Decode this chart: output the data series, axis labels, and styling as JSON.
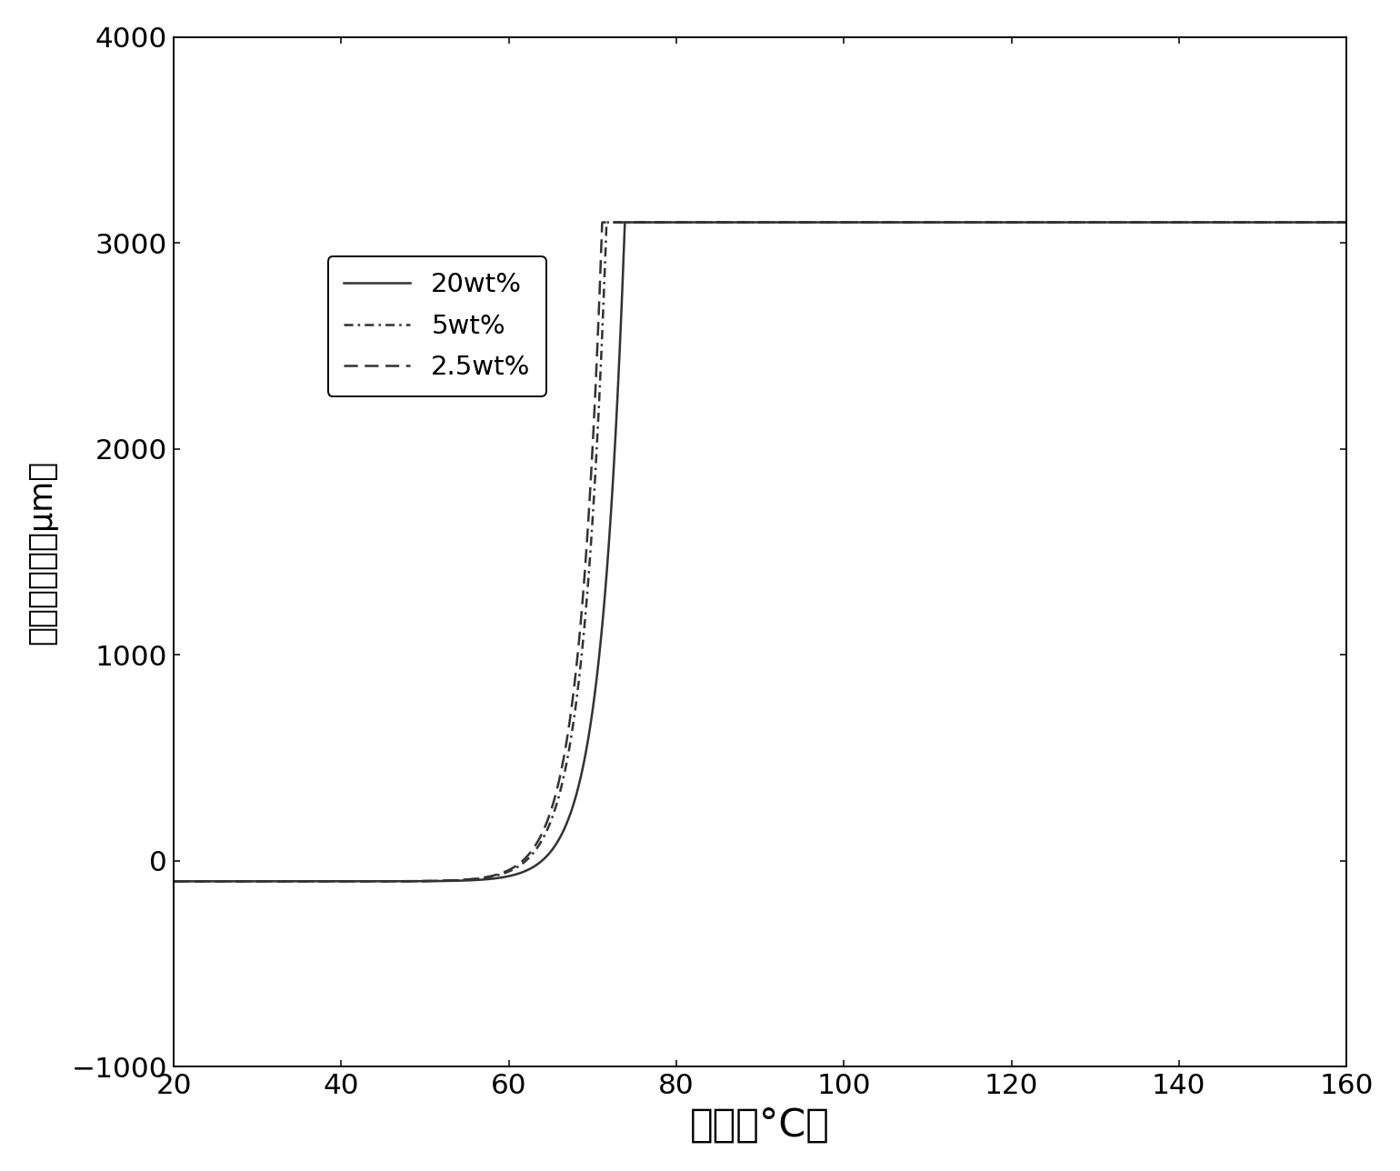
{
  "xlabel": "温度（°C）",
  "ylabel": "尺寸改变量（μm）",
  "xlim": [
    20,
    160
  ],
  "ylim": [
    -1000,
    4000
  ],
  "xticks": [
    20,
    40,
    60,
    80,
    100,
    120,
    140,
    160
  ],
  "yticks": [
    -1000,
    0,
    1000,
    2000,
    3000,
    4000
  ],
  "legend_labels": [
    "20wt%",
    "5wt%",
    "2.5wt%"
  ],
  "line_styles": [
    "-",
    "--",
    "-."
  ],
  "plateau_value": 3100,
  "curve_params": [
    {
      "alpha": 0.00012,
      "beta": 3.5,
      "x0": 25,
      "x_plateau": 107
    },
    {
      "alpha": 5.5e-05,
      "beta": 3.6,
      "x0": 22,
      "x_plateau": 122
    },
    {
      "alpha": 2.5e-05,
      "beta": 3.65,
      "x0": 20,
      "x_plateau": 145
    }
  ],
  "background_color": "#ffffff",
  "line_color": "#333333",
  "xlabel_fontsize": 22,
  "ylabel_fontsize": 18,
  "tick_fontsize": 16,
  "legend_fontsize": 15,
  "fig_width": 11.0,
  "fig_height": 9.2,
  "dpi": 140
}
